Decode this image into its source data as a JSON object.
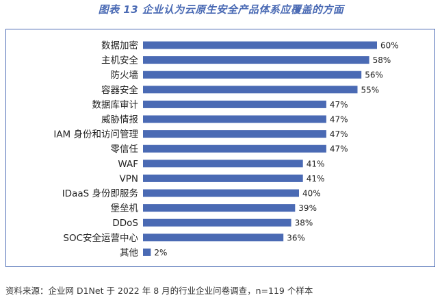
{
  "title": "图表 13  企业认为云原生安全产品体系应覆盖的方面",
  "footnote": "资料来源：企业网 D1Net 于 2022 年 8 月的行业企业问卷调查，n=119 个样本",
  "colors": {
    "bar": "#4a6ab4",
    "title": "#4a6ab4",
    "frame": "#4a6ab4"
  },
  "chart_data": {
    "type": "bar",
    "orientation": "horizontal",
    "title": "图表 13  企业认为云原生安全产品体系应覆盖的方面",
    "xlabel": "",
    "ylabel": "",
    "xlim": [
      0,
      100
    ],
    "grid": false,
    "legend": "none",
    "categories": [
      "数据加密",
      "主机安全",
      "防火墙",
      "容器安全",
      "数据库审计",
      "威胁情报",
      "IAM 身份和访问管理",
      "零信任",
      "WAF",
      "VPN",
      "IDaaS 身份即服务",
      "堡垒机",
      "DDoS",
      "SOC安全运营中心",
      "其他"
    ],
    "values": [
      60,
      58,
      56,
      55,
      47,
      47,
      47,
      47,
      41,
      41,
      40,
      39,
      38,
      36,
      2
    ],
    "data_labels": [
      "60%",
      "58%",
      "56%",
      "55%",
      "47%",
      "47%",
      "47%",
      "47%",
      "41%",
      "41%",
      "40%",
      "39%",
      "38%",
      "36%",
      "2%"
    ]
  }
}
